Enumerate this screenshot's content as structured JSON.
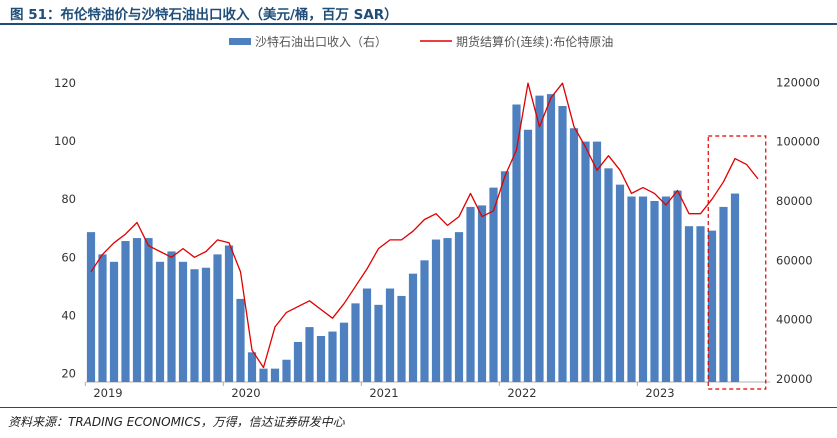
{
  "figure": {
    "title": "图 51：布伦特油价与沙特石油出口收入（美元/桶，百万 SAR）",
    "source": "资料来源：TRADING ECONOMICS，万得，信达证券研发中心"
  },
  "chart_data": {
    "type": "bar+line",
    "title": "布伦特油价与沙特石油出口收入（美元/桶，百万 SAR）",
    "legend": {
      "bar_label": "沙特石油出口收入（右）",
      "line_label": "期货结算价(连续):布伦特原油",
      "placement": "top-center"
    },
    "x_tick_labels": [
      "2019",
      "2020",
      "2021",
      "2022",
      "2023"
    ],
    "left_axis": {
      "ticks": [
        20,
        40,
        60,
        80,
        100,
        120
      ],
      "range": [
        17,
        128
      ]
    },
    "right_axis": {
      "ticks": [
        20000,
        40000,
        60000,
        80000,
        100000,
        120000
      ],
      "range": [
        19000,
        127500
      ]
    },
    "bar_series": {
      "name": "沙特石油出口收入（右）",
      "unit": "百万 SAR",
      "start": "2019-01",
      "values": [
        69500,
        62000,
        59500,
        66500,
        67500,
        67500,
        59500,
        63000,
        59500,
        57000,
        57500,
        62000,
        65000,
        47000,
        29000,
        23500,
        23500,
        26500,
        32500,
        37500,
        34500,
        36000,
        39000,
        45500,
        50500,
        45000,
        50500,
        48000,
        55500,
        60000,
        67000,
        67500,
        69500,
        78000,
        78500,
        84500,
        90000,
        112500,
        104000,
        115500,
        116000,
        112000,
        104500,
        100000,
        100000,
        91000,
        85500,
        81500,
        81500,
        80000,
        81500,
        83500,
        71500,
        71500,
        70000,
        78000,
        82500
      ]
    },
    "line_series": {
      "name": "期货结算价(连续):布伦特原油",
      "unit": "美元/桶",
      "start": "2019-01",
      "values": [
        55,
        61,
        65,
        68,
        72,
        64,
        62,
        60,
        63,
        60,
        62,
        66,
        65,
        55,
        28,
        22,
        36,
        41,
        43,
        45,
        42,
        39,
        44,
        50,
        56,
        63,
        66,
        66,
        69,
        73,
        75,
        71,
        74,
        82,
        74,
        76,
        88,
        97,
        120,
        105,
        115,
        120,
        105,
        98,
        90,
        95,
        90,
        82,
        84,
        82,
        78,
        83,
        75,
        75,
        80,
        86,
        94,
        92,
        87
      ]
    },
    "highlight_box": {
      "from": "2023-07",
      "to": "2023-11"
    }
  }
}
